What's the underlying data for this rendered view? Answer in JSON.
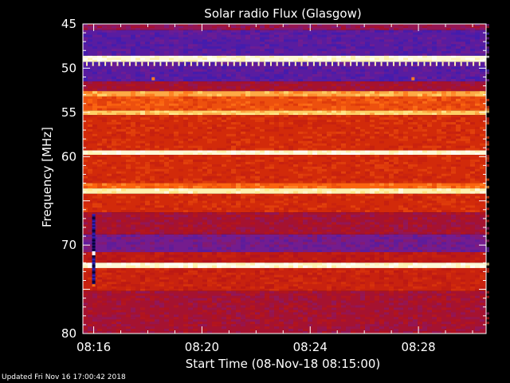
{
  "chart_data": {
    "type": "heatmap",
    "title": "Solar radio Flux (Glasgow)",
    "xlabel": "Start Time (08-Nov-18 08:15:00)",
    "ylabel": "Frequency [MHz]",
    "xlim_minutes": [
      15.6,
      30.5
    ],
    "ylim": [
      45,
      80
    ],
    "y_inverted": true,
    "yticks": [
      {
        "value": 45,
        "label": "45"
      },
      {
        "value": 50,
        "label": "50"
      },
      {
        "value": 55,
        "label": "55"
      },
      {
        "value": 60,
        "label": "60"
      },
      {
        "value": 70,
        "label": "70"
      },
      {
        "value": 80,
        "label": "80"
      }
    ],
    "xticks": [
      {
        "minute": 16,
        "label": "08:16"
      },
      {
        "minute": 20,
        "label": "08:20"
      },
      {
        "minute": 24,
        "label": "08:24"
      },
      {
        "minute": 28,
        "label": "08:28"
      }
    ],
    "colormap": [
      "#3a1cb4",
      "#7a1c8a",
      "#b0101a",
      "#d22a0a",
      "#ff6a10",
      "#ffe87a",
      "#ffffff"
    ],
    "frequency_bands": [
      {
        "from": 45,
        "to": 45.7,
        "level": 0.25
      },
      {
        "from": 45.7,
        "to": 48.6,
        "level": 0.08
      },
      {
        "from": 48.6,
        "to": 49.3,
        "level": 0.95
      },
      {
        "from": 49.3,
        "to": 51.5,
        "level": 0.08
      },
      {
        "from": 51.5,
        "to": 52.6,
        "level": 0.3
      },
      {
        "from": 52.6,
        "to": 53.2,
        "level": 0.75
      },
      {
        "from": 53.2,
        "to": 54.8,
        "level": 0.6
      },
      {
        "from": 54.8,
        "to": 55.3,
        "level": 0.8
      },
      {
        "from": 55.3,
        "to": 59.3,
        "level": 0.5
      },
      {
        "from": 59.3,
        "to": 59.8,
        "level": 0.95
      },
      {
        "from": 59.8,
        "to": 63.0,
        "level": 0.5
      },
      {
        "from": 63.0,
        "to": 63.6,
        "level": 0.65
      },
      {
        "from": 63.6,
        "to": 64.2,
        "level": 0.9
      },
      {
        "from": 64.2,
        "to": 66.3,
        "level": 0.5
      },
      {
        "from": 66.3,
        "to": 68.8,
        "level": 0.3
      },
      {
        "from": 68.8,
        "to": 70.8,
        "level": 0.15
      },
      {
        "from": 70.8,
        "to": 72.0,
        "level": 0.4
      },
      {
        "from": 72.0,
        "to": 72.6,
        "level": 0.95
      },
      {
        "from": 72.6,
        "to": 75.2,
        "level": 0.45
      },
      {
        "from": 75.2,
        "to": 80,
        "level": 0.3
      }
    ],
    "features": [
      {
        "type": "burst",
        "minute": 16.0,
        "freq_from": 66.5,
        "freq_to": 74.6
      },
      {
        "type": "spot",
        "minute": 18.2,
        "freq": 51.2
      },
      {
        "type": "spot",
        "minute": 27.8,
        "freq": 51.2
      }
    ]
  },
  "footer": {
    "updated_text": "Updated Fri Nov 16 17:00:42 2018"
  }
}
